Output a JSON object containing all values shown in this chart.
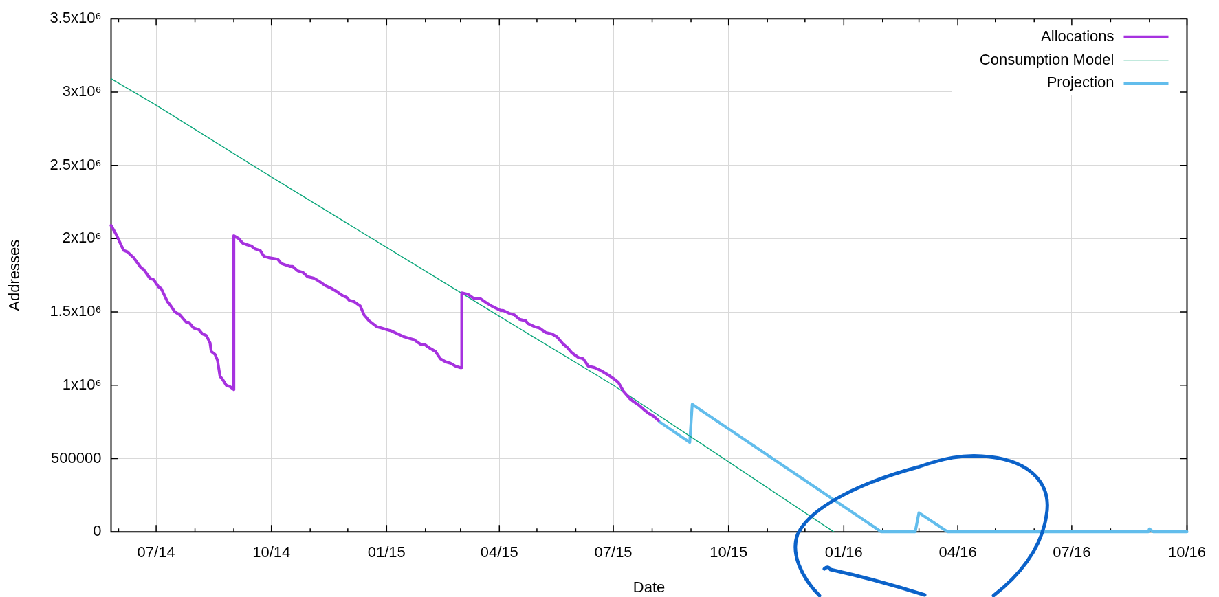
{
  "chart_data": {
    "type": "line",
    "xlabel": "Date",
    "ylabel": "Addresses",
    "xlim": [
      "2014-05-26",
      "2016-10-01"
    ],
    "xticks": [
      {
        "value": "2014-06-01",
        "label": null
      },
      {
        "value": "2014-07-01",
        "label": "07/14"
      },
      {
        "value": "2014-08-01",
        "label": null
      },
      {
        "value": "2014-09-01",
        "label": null
      },
      {
        "value": "2014-10-01",
        "label": "10/14"
      },
      {
        "value": "2014-11-01",
        "label": null
      },
      {
        "value": "2014-12-01",
        "label": null
      },
      {
        "value": "2015-01-01",
        "label": "01/15"
      },
      {
        "value": "2015-02-01",
        "label": null
      },
      {
        "value": "2015-03-01",
        "label": null
      },
      {
        "value": "2015-04-01",
        "label": "04/15"
      },
      {
        "value": "2015-05-01",
        "label": null
      },
      {
        "value": "2015-06-01",
        "label": null
      },
      {
        "value": "2015-07-01",
        "label": "07/15"
      },
      {
        "value": "2015-08-01",
        "label": null
      },
      {
        "value": "2015-09-01",
        "label": null
      },
      {
        "value": "2015-10-01",
        "label": "10/15"
      },
      {
        "value": "2015-11-01",
        "label": null
      },
      {
        "value": "2015-12-01",
        "label": null
      },
      {
        "value": "2016-01-01",
        "label": "01/16"
      },
      {
        "value": "2016-02-01",
        "label": null
      },
      {
        "value": "2016-03-01",
        "label": null
      },
      {
        "value": "2016-04-01",
        "label": "04/16"
      },
      {
        "value": "2016-05-01",
        "label": null
      },
      {
        "value": "2016-06-01",
        "label": null
      },
      {
        "value": "2016-07-01",
        "label": "07/16"
      },
      {
        "value": "2016-08-01",
        "label": null
      },
      {
        "value": "2016-09-01",
        "label": null
      },
      {
        "value": "2016-10-01",
        "label": "10/16"
      }
    ],
    "ylim": [
      0,
      3500000
    ],
    "yticks": [
      0,
      500000,
      {
        "value": 1000000,
        "label": "1x10⁶"
      },
      {
        "value": 1500000,
        "label": "1.5x10⁶"
      },
      {
        "value": 2000000,
        "label": "2x10⁶"
      },
      {
        "value": 2500000,
        "label": "2.5x10⁶"
      },
      {
        "value": 3000000,
        "label": "3x10⁶"
      },
      {
        "value": 3500000,
        "label": "3.5x10⁶"
      }
    ],
    "grid": true,
    "legend": "top right",
    "series": [
      {
        "name": "Allocations",
        "color": "#a632df",
        "x": [
          "2014-05-26",
          "2014-05-30",
          "2014-06-05",
          "2014-06-08",
          "2014-06-13",
          "2014-06-19",
          "2014-06-21",
          "2014-06-26",
          "2014-06-29",
          "2014-07-03",
          "2014-07-05",
          "2014-07-10",
          "2014-07-12",
          "2014-07-16",
          "2014-07-20",
          "2014-07-25",
          "2014-07-27",
          "2014-07-31",
          "2014-08-04",
          "2014-08-07",
          "2014-08-10",
          "2014-08-13",
          "2014-08-14",
          "2014-08-17",
          "2014-08-19",
          "2014-08-21",
          "2014-08-23",
          "2014-08-26",
          "2014-08-29",
          "2014-09-01",
          "2014-09-01",
          "2014-09-05",
          "2014-09-08",
          "2014-09-11",
          "2014-09-15",
          "2014-09-18",
          "2014-09-22",
          "2014-09-25",
          "2014-09-29",
          "2014-10-06",
          "2014-10-09",
          "2014-10-16",
          "2014-10-18",
          "2014-10-22",
          "2014-10-26",
          "2014-10-30",
          "2014-11-04",
          "2014-11-08",
          "2014-11-13",
          "2014-11-18",
          "2014-11-22",
          "2014-11-27",
          "2014-11-30",
          "2014-12-02",
          "2014-12-06",
          "2014-12-11",
          "2014-12-14",
          "2014-12-18",
          "2014-12-24",
          "2014-12-28",
          "2015-01-01",
          "2015-01-05",
          "2015-01-10",
          "2015-01-15",
          "2015-01-19",
          "2015-01-23",
          "2015-01-28",
          "2015-01-31",
          "2015-02-05",
          "2015-02-09",
          "2015-02-13",
          "2015-02-17",
          "2015-02-21",
          "2015-02-25",
          "2015-03-01",
          "2015-03-02",
          "2015-03-02",
          "2015-03-07",
          "2015-03-12",
          "2015-03-17",
          "2015-03-22",
          "2015-03-26",
          "2015-04-02",
          "2015-04-04",
          "2015-04-09",
          "2015-04-13",
          "2015-04-17",
          "2015-04-22",
          "2015-04-24",
          "2015-04-29",
          "2015-05-03",
          "2015-05-08",
          "2015-05-13",
          "2015-05-17",
          "2015-05-22",
          "2015-05-25",
          "2015-05-29",
          "2015-06-03",
          "2015-06-07",
          "2015-06-11",
          "2015-06-16",
          "2015-06-21",
          "2015-06-27",
          "2015-07-02",
          "2015-07-05",
          "2015-07-09",
          "2015-07-14",
          "2015-07-17",
          "2015-07-22",
          "2015-07-26",
          "2015-07-29",
          "2015-08-02",
          "2015-08-06"
        ],
        "values": [
          2090000,
          2030000,
          1920000,
          1910000,
          1870000,
          1800000,
          1790000,
          1730000,
          1720000,
          1670000,
          1660000,
          1570000,
          1550000,
          1500000,
          1480000,
          1430000,
          1430000,
          1390000,
          1380000,
          1350000,
          1340000,
          1290000,
          1230000,
          1210000,
          1170000,
          1060000,
          1040000,
          1000000,
          990000,
          970000,
          2020000,
          2000000,
          1970000,
          1960000,
          1950000,
          1930000,
          1920000,
          1880000,
          1870000,
          1860000,
          1830000,
          1810000,
          1810000,
          1780000,
          1770000,
          1740000,
          1730000,
          1710000,
          1680000,
          1660000,
          1640000,
          1610000,
          1600000,
          1580000,
          1570000,
          1540000,
          1480000,
          1440000,
          1400000,
          1390000,
          1380000,
          1370000,
          1350000,
          1330000,
          1320000,
          1310000,
          1280000,
          1280000,
          1250000,
          1230000,
          1180000,
          1160000,
          1150000,
          1130000,
          1120000,
          1120000,
          1630000,
          1620000,
          1590000,
          1590000,
          1560000,
          1540000,
          1510000,
          1510000,
          1490000,
          1480000,
          1450000,
          1440000,
          1420000,
          1400000,
          1390000,
          1360000,
          1350000,
          1330000,
          1280000,
          1260000,
          1220000,
          1190000,
          1180000,
          1130000,
          1120000,
          1100000,
          1070000,
          1040000,
          1020000,
          960000,
          910000,
          890000,
          860000,
          830000,
          810000,
          790000,
          760000
        ]
      },
      {
        "name": "Consumption Model",
        "color": "#0aa67a",
        "x": [
          "2014-05-26",
          "2014-07-01",
          "2014-10-01",
          "2015-01-01",
          "2015-04-01",
          "2015-07-01",
          "2015-09-20",
          "2015-12-24"
        ],
        "values": [
          3090000,
          2910000,
          2420000,
          1940000,
          1470000,
          1000000,
          540000,
          0
        ]
      },
      {
        "name": "Projection",
        "color": "#62bdec",
        "x": [
          "2015-08-07",
          "2015-08-31",
          "2015-09-02",
          "2016-01-31",
          "2016-02-27",
          "2016-03-01",
          "2016-03-24",
          "2016-08-31",
          "2016-09-01",
          "2016-09-04",
          "2016-10-01"
        ],
        "values": [
          750000,
          610000,
          870000,
          0,
          0,
          130000,
          0,
          0,
          20000,
          0,
          0
        ]
      }
    ]
  }
}
